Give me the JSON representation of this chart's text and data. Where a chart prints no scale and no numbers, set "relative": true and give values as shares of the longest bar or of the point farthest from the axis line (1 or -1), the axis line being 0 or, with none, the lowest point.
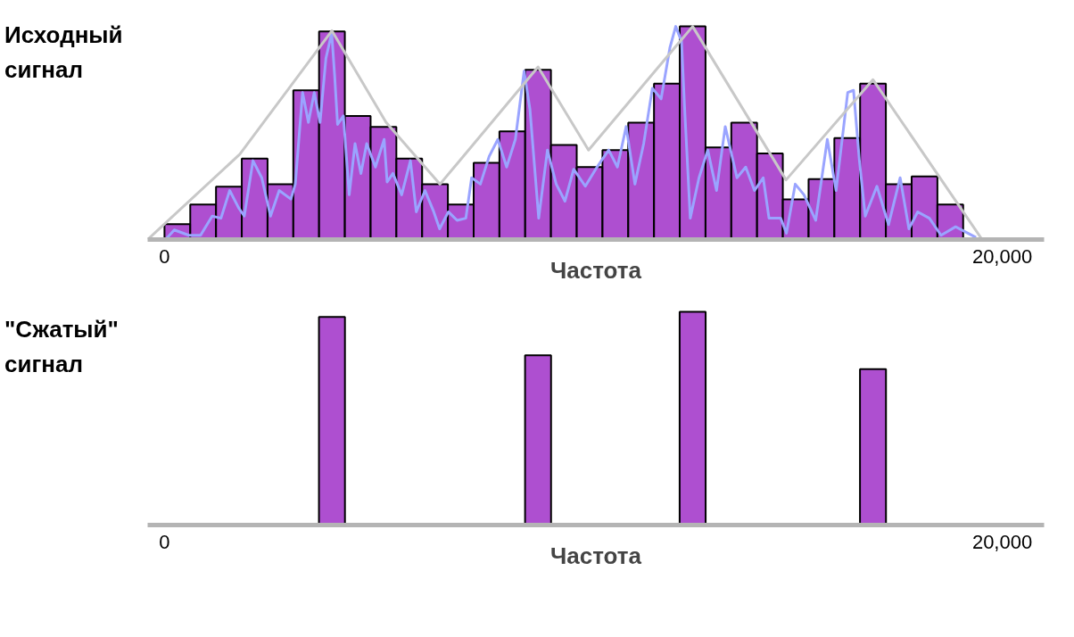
{
  "chart_data": [
    {
      "type": "bar",
      "title": "Исходный сигнал",
      "xlabel": "Частота",
      "relative": true,
      "xlim": [
        -400,
        21000
      ],
      "xticks": [
        0,
        {
          "value": 20000,
          "label": "20,000"
        }
      ],
      "grid": false,
      "series": [
        {
          "color": "#a030c8",
          "x": [
            310,
            925,
            1540,
            2155,
            2770,
            3385,
            4000,
            4615,
            5230,
            5845,
            6460,
            7075,
            7690,
            8305,
            8920,
            9535,
            10150,
            10765,
            11380,
            11995,
            12610,
            13225,
            13840,
            14455,
            15070,
            15685,
            16300,
            16915,
            17530,
            18145,
            18760
          ],
          "values": [
            0.072,
            0.164,
            0.248,
            0.38,
            0.26,
            0.7,
            0.976,
            0.58,
            0.528,
            0.38,
            0.26,
            0.164,
            0.36,
            0.508,
            0.796,
            0.444,
            0.34,
            0.42,
            0.548,
            0.732,
            1.0,
            0.432,
            0.548,
            0.404,
            0.188,
            0.284,
            0.476,
            0.732,
            0.26,
            0.296,
            0.164
          ]
        },
        {
          "type": "line",
          "color": "#9aa4ff",
          "x": [
            27,
            236,
            585,
            863,
            1141,
            1350,
            1559,
            1768,
            1907,
            2115,
            2324,
            2533,
            2741,
            3020,
            3125,
            3299,
            3438,
            3577,
            3716,
            3856,
            3994,
            4064,
            4134,
            4273,
            4412,
            4551,
            4691,
            4829,
            5038,
            5246,
            5317,
            5455,
            5664,
            5873,
            6013,
            6221,
            6430,
            6570,
            6779,
            6988,
            7196,
            7334,
            7543,
            7752,
            7960,
            8170,
            8378,
            8587,
            8727,
            8935,
            9144,
            9353,
            9562,
            9770,
            10048,
            10327,
            10606,
            10814,
            11023,
            11232,
            11441,
            11649,
            11858,
            12067,
            12206,
            12345,
            12415,
            12553,
            12762,
            12971,
            13180,
            13388,
            13668,
            13877,
            14086,
            14294,
            14433,
            14712,
            14850,
            15059,
            15268,
            15547,
            15825,
            16034,
            16312,
            16451,
            16591,
            16730,
            17008,
            17286,
            17564,
            17773,
            17982,
            18261,
            18539,
            18887,
            19374
          ],
          "values": [
            0.0,
            0.045,
            0.02,
            0.02,
            0.11,
            0.1,
            0.23,
            0.15,
            0.11,
            0.37,
            0.29,
            0.11,
            0.23,
            0.19,
            0.26,
            0.69,
            0.55,
            0.69,
            0.55,
            0.85,
            0.97,
            0.77,
            0.54,
            0.58,
            0.21,
            0.45,
            0.31,
            0.45,
            0.34,
            0.47,
            0.27,
            0.31,
            0.21,
            0.37,
            0.13,
            0.23,
            0.13,
            0.05,
            0.13,
            0.09,
            0.1,
            0.29,
            0.26,
            0.39,
            0.47,
            0.34,
            0.47,
            0.79,
            0.61,
            0.1,
            0.42,
            0.26,
            0.18,
            0.33,
            0.25,
            0.34,
            0.42,
            0.34,
            0.53,
            0.26,
            0.45,
            0.71,
            0.66,
            0.9,
            1.0,
            0.93,
            0.63,
            0.1,
            0.29,
            0.42,
            0.23,
            0.53,
            0.29,
            0.34,
            0.23,
            0.29,
            0.1,
            0.1,
            0.03,
            0.26,
            0.21,
            0.09,
            0.47,
            0.23,
            0.69,
            0.7,
            0.37,
            0.11,
            0.25,
            0.07,
            0.29,
            0.05,
            0.13,
            0.1,
            0.02,
            0.06,
            0.01
          ]
        },
        {
          "type": "line",
          "color": "#c8c8c8",
          "x": [
            -400,
            1800,
            4000,
            5290,
            6580,
            8920,
            10125,
            12610,
            14840,
            16915,
            19520
          ],
          "values": [
            0,
            0.4,
            0.98,
            0.55,
            0.26,
            0.81,
            0.42,
            1.0,
            0.28,
            0.75,
            0
          ]
        }
      ]
    },
    {
      "type": "bar",
      "title": "\"Сжатый\" сигнал",
      "xlabel": "Частота",
      "relative": true,
      "xlim": [
        -400,
        21000
      ],
      "xticks": [
        0,
        {
          "value": 20000,
          "label": "20,000"
        }
      ],
      "grid": false,
      "series": [
        {
          "color": "#a030c8",
          "x": [
            4000,
            8920,
            12610,
            16915
          ],
          "values": [
            0.976,
            0.796,
            1.0,
            0.732
          ]
        }
      ]
    }
  ]
}
